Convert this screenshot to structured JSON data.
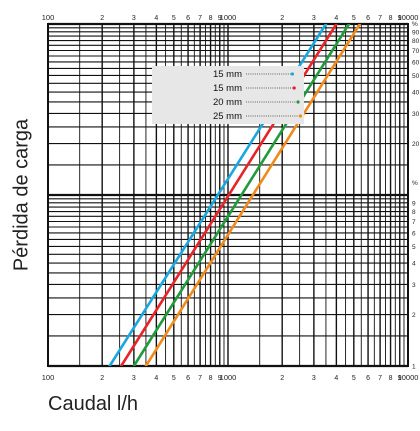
{
  "chart_data": {
    "type": "line",
    "title": "",
    "xlabel": "Caudal l/h",
    "ylabel": "Pérdida de carga",
    "x_scale": "log",
    "y_scale": "log",
    "xlim": [
      100,
      10000
    ],
    "ylim": [
      1,
      100
    ],
    "grid": true,
    "legend_position": "top-center",
    "x_ticks_top": [
      "100",
      "2",
      "3",
      "4",
      "5",
      "6",
      "7",
      "8",
      "9",
      "1000",
      "2",
      "3",
      "4",
      "5",
      "6",
      "7",
      "8",
      "9",
      "10000"
    ],
    "x_ticks_bottom": [
      "100",
      "2",
      "3",
      "4",
      "5",
      "6",
      "7",
      "8",
      "9",
      "1000",
      "2",
      "3",
      "4",
      "5",
      "6",
      "7",
      "8",
      "9",
      "10000"
    ],
    "y_ticks_upper": [
      "%",
      "90",
      "80",
      "70",
      "60",
      "50",
      "40",
      "30",
      "20"
    ],
    "y_ticks_lower": [
      "%",
      "9",
      "8",
      "7",
      "6",
      "5",
      "4",
      "3",
      "2",
      "1"
    ],
    "series": [
      {
        "name": "15 mm",
        "color": "#1aa7e0",
        "x": [
          220,
          3500
        ],
        "y": [
          1,
          100
        ]
      },
      {
        "name": "15 mm",
        "color": "#e8232a",
        "x": [
          255,
          4000
        ],
        "y": [
          1,
          100
        ]
      },
      {
        "name": "20 mm",
        "color": "#1f9a3c",
        "x": [
          300,
          4700
        ],
        "y": [
          1,
          100
        ]
      },
      {
        "name": "25 mm",
        "color": "#f08a1c",
        "x": [
          350,
          5400
        ],
        "y": [
          1,
          100
        ]
      }
    ]
  }
}
